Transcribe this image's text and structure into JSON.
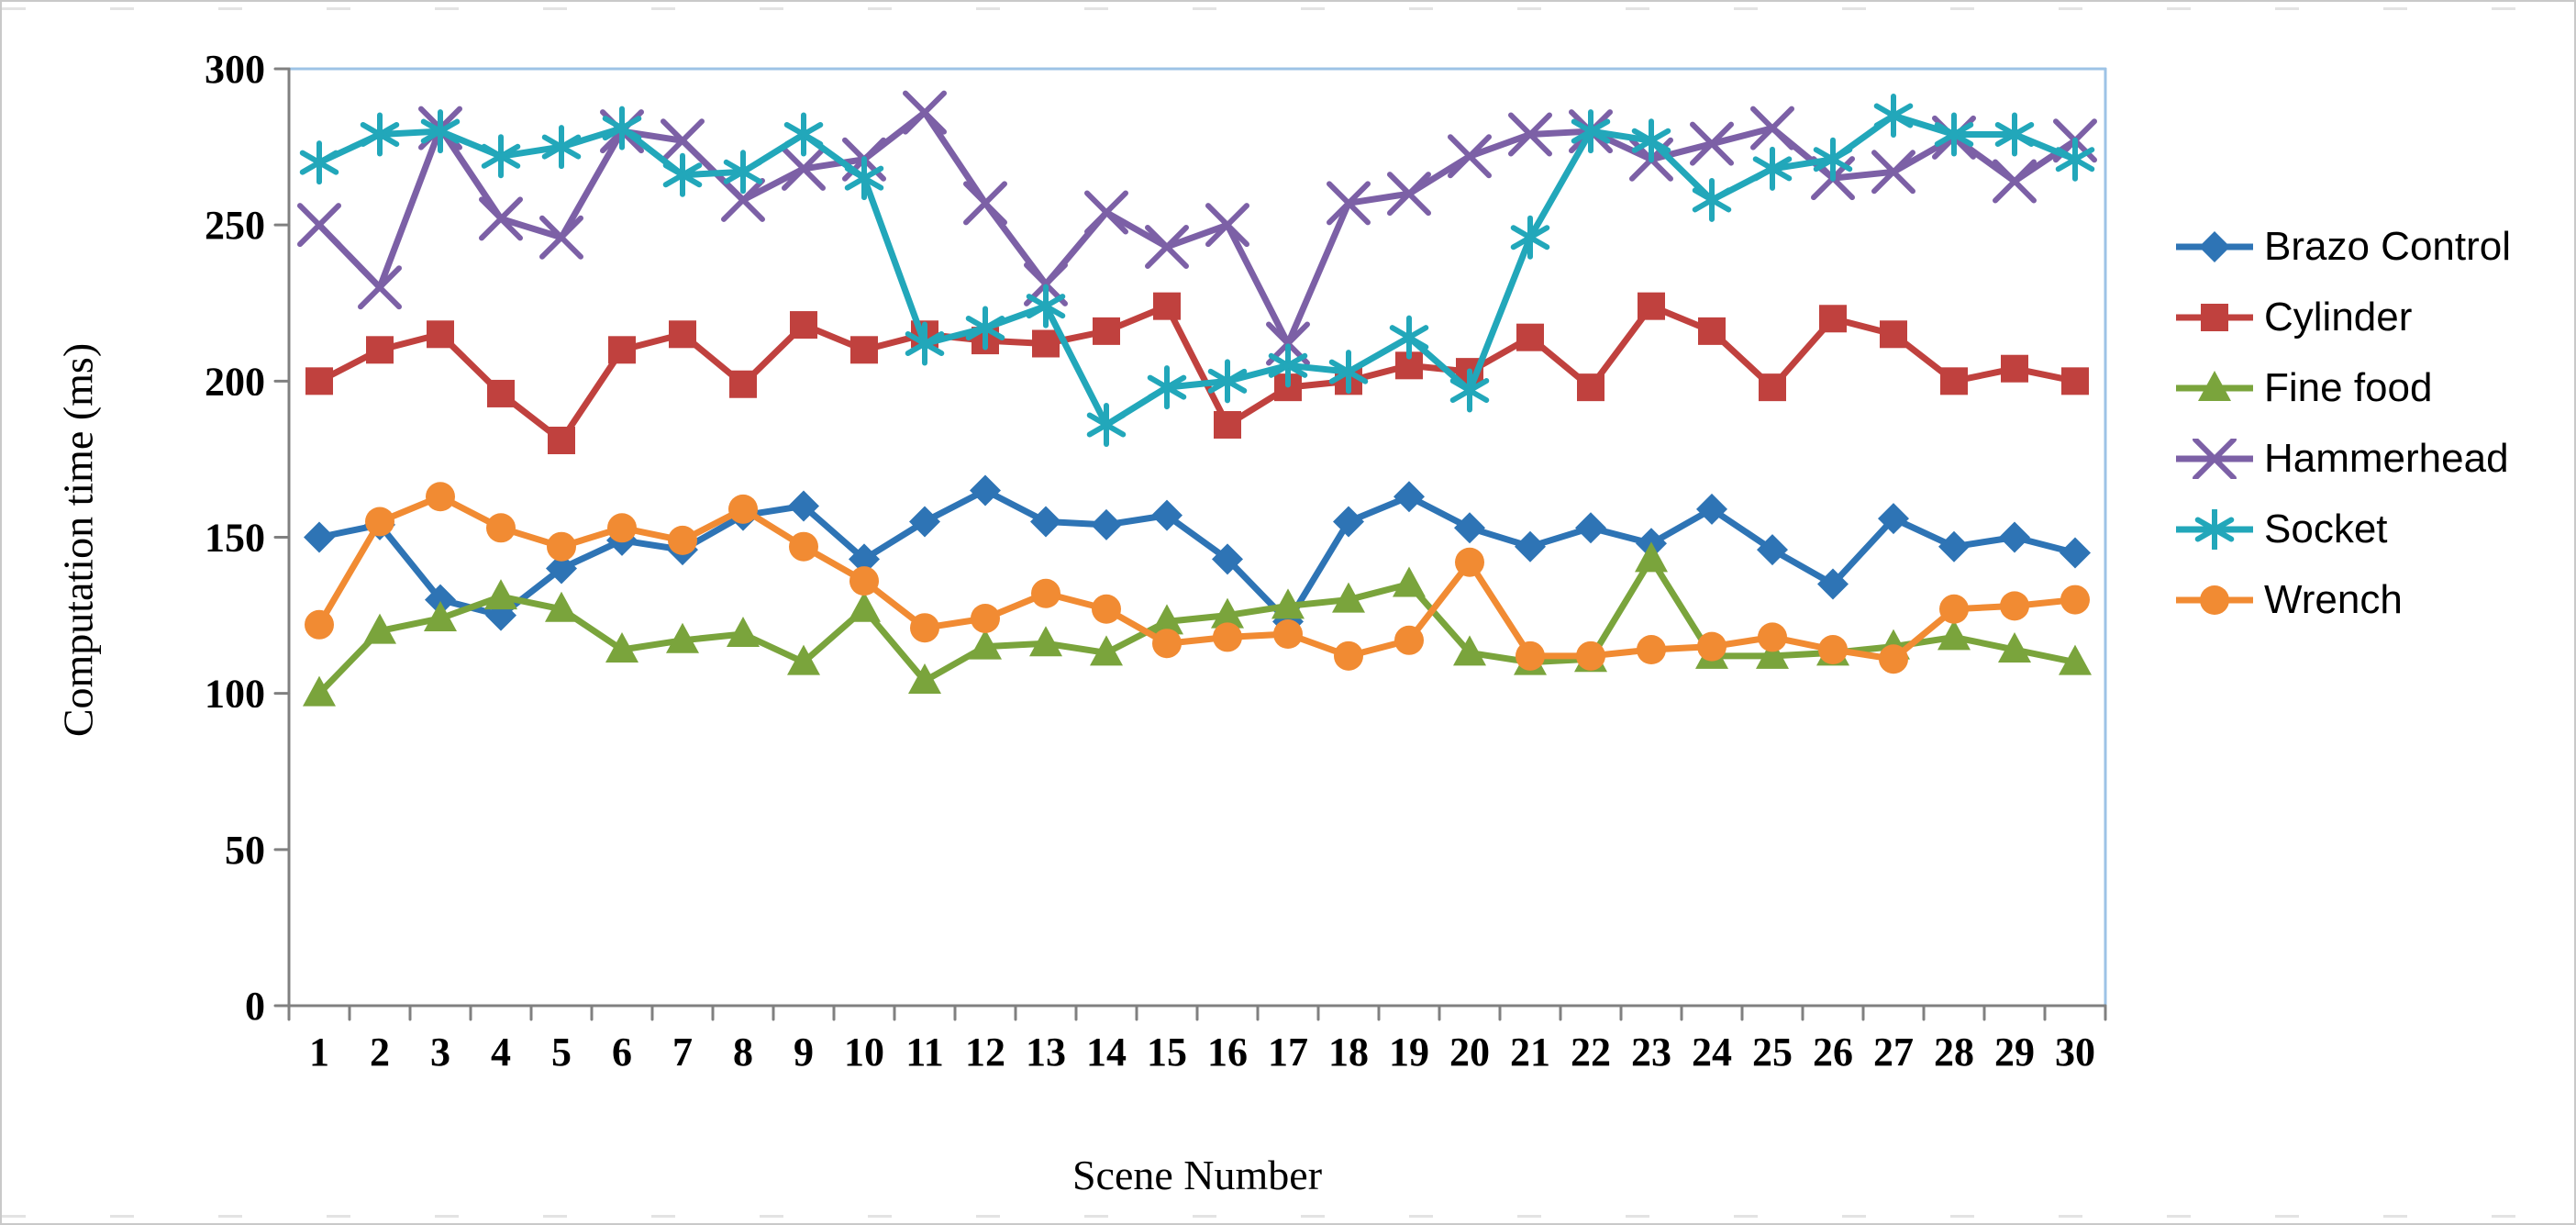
{
  "figure": {
    "x_axis_title": "Scene Number",
    "y_axis_title": "Computation time (ms)",
    "plot_border_color": "#9dc3e6",
    "axis_line_color": "#808080",
    "tick_label_color": "#000000",
    "background": "#ffffff"
  },
  "chart_data": {
    "type": "line",
    "title": "",
    "xlabel": "Scene Number",
    "ylabel": "Computation time (ms)",
    "x": [
      1,
      2,
      3,
      4,
      5,
      6,
      7,
      8,
      9,
      10,
      11,
      12,
      13,
      14,
      15,
      16,
      17,
      18,
      19,
      20,
      21,
      22,
      23,
      24,
      25,
      26,
      27,
      28,
      29,
      30
    ],
    "ylim": [
      0,
      300
    ],
    "yticks": [
      0,
      50,
      100,
      150,
      200,
      250,
      300
    ],
    "grid": false,
    "legend_position": "right",
    "series": [
      {
        "name": "Brazo Control",
        "color": "#2e74b5",
        "marker": "diamond",
        "values": [
          150,
          154,
          130,
          125,
          140,
          149,
          146,
          157,
          160,
          143,
          155,
          165,
          155,
          154,
          157,
          143,
          123,
          155,
          163,
          153,
          147,
          153,
          148,
          159,
          146,
          135,
          156,
          147,
          150,
          145
        ]
      },
      {
        "name": "Cylinder",
        "color": "#c0413e",
        "marker": "square",
        "values": [
          200,
          210,
          215,
          196,
          181,
          210,
          215,
          199,
          218,
          210,
          215,
          213,
          212,
          216,
          224,
          186,
          198,
          200,
          205,
          203,
          214,
          198,
          224,
          216,
          198,
          220,
          215,
          200,
          204,
          200
        ]
      },
      {
        "name": "Fine food",
        "color": "#7aa43c",
        "marker": "triangle",
        "values": [
          100,
          120,
          124,
          131,
          127,
          114,
          117,
          119,
          110,
          127,
          104,
          115,
          116,
          113,
          123,
          125,
          128,
          130,
          135,
          113,
          110,
          111,
          143,
          112,
          112,
          113,
          115,
          118,
          114,
          110
        ]
      },
      {
        "name": "Hammerhead",
        "color": "#7c60a6",
        "marker": "x",
        "values": [
          250,
          230,
          281,
          252,
          246,
          280,
          277,
          258,
          268,
          271,
          286,
          257,
          231,
          254,
          243,
          250,
          212,
          257,
          260,
          272,
          279,
          280,
          271,
          276,
          281,
          265,
          267,
          278,
          264,
          277
        ]
      },
      {
        "name": "Socket",
        "color": "#22a7ba",
        "marker": "asterisk",
        "values": [
          270,
          279,
          280,
          272,
          275,
          281,
          266,
          267,
          279,
          265,
          212,
          217,
          224,
          186,
          198,
          200,
          205,
          203,
          214,
          197,
          246,
          280,
          277,
          258,
          268,
          271,
          285,
          279,
          279,
          271
        ]
      },
      {
        "name": "Wrench",
        "color": "#f18b33",
        "marker": "circle",
        "values": [
          122,
          155,
          163,
          153,
          147,
          153,
          149,
          159,
          147,
          136,
          121,
          124,
          132,
          127,
          116,
          118,
          119,
          112,
          117,
          142,
          112,
          112,
          114,
          115,
          118,
          114,
          111,
          127,
          128,
          130
        ]
      }
    ]
  }
}
